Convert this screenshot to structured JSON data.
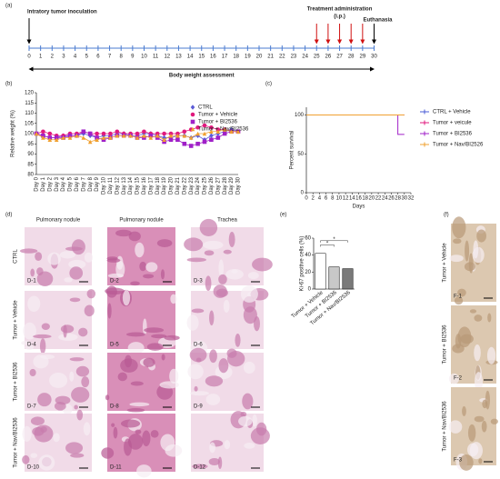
{
  "panels": [
    "(a)",
    "(b)",
    "(c)",
    "(d)",
    "(e)",
    "(f)"
  ],
  "timeline": {
    "days": [
      0,
      1,
      2,
      3,
      4,
      5,
      6,
      7,
      8,
      9,
      10,
      11,
      12,
      13,
      14,
      15,
      16,
      17,
      18,
      19,
      20,
      21,
      22,
      23,
      24,
      25,
      26,
      27,
      28,
      29,
      30
    ],
    "inoculation": "Intratory tumor inoculation",
    "treatment": "Treatment administration",
    "route": "(i.p.)",
    "euthanasia": "Euthanasia",
    "body_weight": "Body weight assessment"
  },
  "chart_data": [
    {
      "type": "line",
      "y_label": "Relative weight (%)",
      "categories": [
        "Day 0",
        "Day 1",
        "Day 2",
        "Day 3",
        "Day 4",
        "Day 5",
        "Day 6",
        "Day 7",
        "Day 8",
        "Day 9",
        "Day 10",
        "Day 11",
        "Day 12",
        "Day 13",
        "Day 14",
        "Day 15",
        "Day 16",
        "Day 17",
        "Day 18",
        "Day 19",
        "Day 20",
        "Day 21",
        "Day 22",
        "Day 23",
        "Day 24",
        "Day 25",
        "Day 26",
        "Day 27",
        "Day 28",
        "Day 29",
        "Day 30"
      ],
      "ylim": [
        80,
        120
      ],
      "yticks": [
        80,
        85,
        90,
        95,
        100,
        105,
        110,
        115,
        120
      ],
      "series": [
        {
          "name": "CTRL",
          "color": "#5b5bd6",
          "marker": "diamond",
          "values": [
            100,
            99,
            98,
            98,
            99,
            99,
            99,
            100,
            99,
            98,
            99,
            99,
            100,
            100,
            99,
            99,
            100,
            100,
            99,
            98,
            98,
            99,
            99,
            98,
            99,
            97,
            99,
            100,
            101,
            102,
            101
          ]
        },
        {
          "name": "Tumor + Vehicle",
          "color": "#e0197d",
          "marker": "circle",
          "values": [
            100,
            101,
            100,
            99,
            99,
            100,
            100,
            101,
            100,
            100,
            100,
            100,
            101,
            100,
            100,
            100,
            101,
            100,
            100,
            100,
            100,
            100,
            101,
            102,
            103,
            104,
            103,
            102,
            102,
            101,
            101
          ]
        },
        {
          "name": "Tumor + BI2536",
          "color": "#a020c8",
          "marker": "square",
          "values": [
            100,
            99,
            98,
            98,
            98,
            99,
            99,
            101,
            100,
            98,
            97,
            98,
            99,
            99,
            99,
            98,
            98,
            99,
            98,
            96,
            97,
            97,
            95,
            94,
            95,
            96,
            97,
            98,
            100,
            101,
            101
          ]
        },
        {
          "name": "Tumor + Nav/BI2536",
          "color": "#f0a030",
          "marker": "triangle",
          "values": [
            100,
            98,
            97,
            97,
            98,
            98,
            99,
            98,
            96,
            97,
            98,
            98,
            99,
            99,
            99,
            98,
            99,
            98,
            99,
            97,
            99,
            99,
            99,
            98,
            100,
            100,
            101,
            101,
            102,
            101,
            101
          ]
        }
      ]
    },
    {
      "type": "step",
      "x_label": "Days",
      "y_label": "Percent survival",
      "xlim": [
        0,
        32
      ],
      "xticks": [
        0,
        2,
        4,
        6,
        8,
        10,
        12,
        14,
        16,
        18,
        20,
        22,
        24,
        26,
        28,
        30,
        32
      ],
      "ylim": [
        0,
        110
      ],
      "yticks": [
        0,
        50,
        100
      ],
      "series": [
        {
          "name": "CTRL + Vehicle",
          "color": "#4a5bd6",
          "x": [
            0,
            30
          ],
          "values": [
            100,
            100
          ]
        },
        {
          "name": "Tumor + veicule",
          "color": "#e0197d",
          "x": [
            0,
            30
          ],
          "values": [
            100,
            100
          ]
        },
        {
          "name": "Tumor + BI2536",
          "color": "#a020c8",
          "x": [
            0,
            28,
            30
          ],
          "values": [
            100,
            75,
            75
          ]
        },
        {
          "name": "Tumor + Nav/BI2526",
          "color": "#f0a030",
          "x": [
            0,
            30
          ],
          "values": [
            100,
            100
          ]
        }
      ]
    },
    {
      "type": "bar",
      "y_label": "Ki-67 positive cells (%)",
      "categories": [
        "Tumor + Vehicle",
        "Tumor + BI2536",
        "Tumor + Nav/BI2536"
      ],
      "values": [
        42,
        26,
        24
      ],
      "colors": [
        "#ffffff",
        "#c8c8c8",
        "#7a7a7a"
      ],
      "ylim": [
        0,
        60
      ],
      "yticks": [
        0,
        20,
        40,
        60
      ],
      "annotations": [
        "*",
        "*"
      ]
    }
  ],
  "histology": {
    "columns": [
      "Pulmonary nodule",
      "Pulmonary nodule",
      "Trachea"
    ],
    "rows": [
      "CTRL",
      "Tumor + Vehicle",
      "Tumor + BI2536",
      "Tumor + Nav/BI2536"
    ],
    "images": [
      "D-1",
      "D-2",
      "D-3",
      "D-4",
      "D-5",
      "D-6",
      "D-7",
      "D-8",
      "D-9",
      "D-10",
      "D-11",
      "D-12"
    ]
  },
  "ihc": {
    "rows": [
      "Tumor + Vehicle",
      "Tumor + BI2536",
      "Tumor + Nav/BI2536"
    ],
    "images": [
      "F-1",
      "F-2",
      "F-3"
    ]
  }
}
